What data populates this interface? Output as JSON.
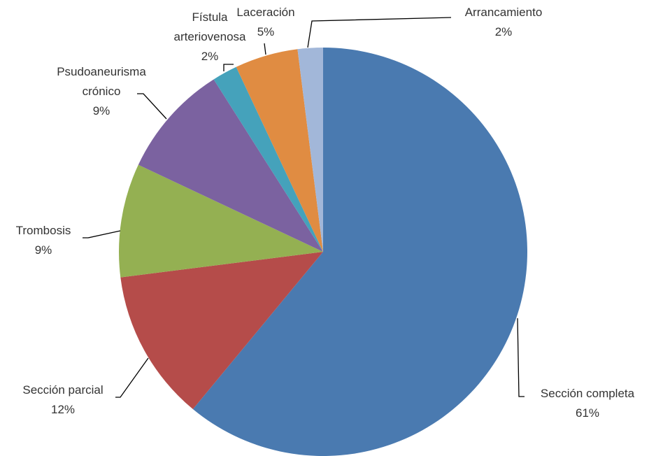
{
  "chart_data": {
    "type": "pie",
    "categories": [
      "Sección completa",
      "Sección parcial",
      "Trombosis",
      "Psudoaneurisma crónico",
      "Fístula arteriovenosa",
      "Laceración",
      "Arrancamiento"
    ],
    "values": [
      61,
      12,
      9,
      9,
      2,
      5,
      2
    ],
    "value_labels": [
      "61%",
      "12%",
      "9%",
      "9%",
      "2%",
      "5%",
      "2%"
    ],
    "colors": [
      "#4a7ab0",
      "#b54c4a",
      "#94b052",
      "#7b62a0",
      "#45a2bb",
      "#e08c42",
      "#a2b7d9"
    ]
  }
}
